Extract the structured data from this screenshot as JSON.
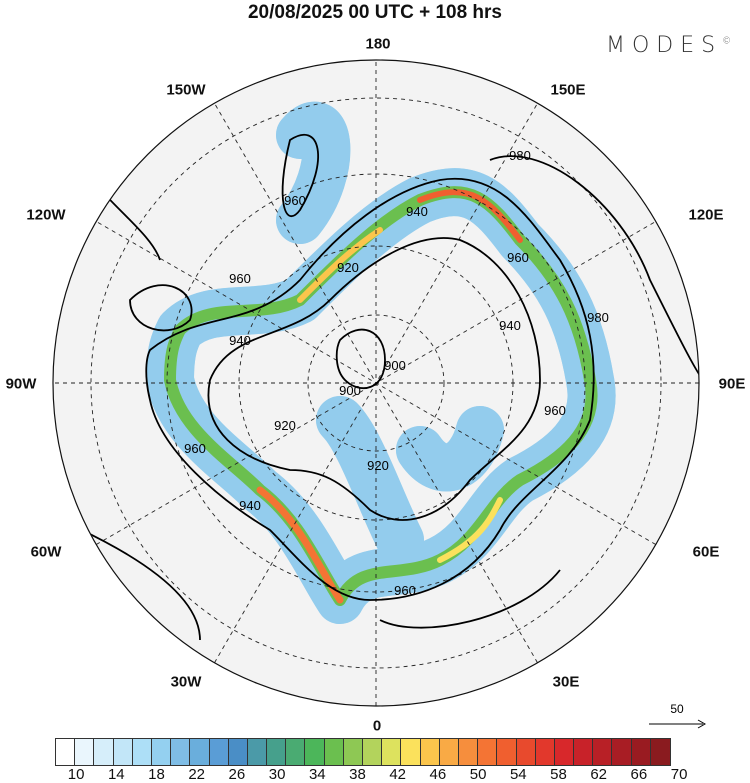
{
  "title": "20/08/2025  00 UTC  + 108 hrs",
  "logo": "MODES",
  "meridian_labels": [
    "180",
    "150E",
    "120E",
    "90E",
    "60E",
    "30E",
    "0",
    "30W",
    "60W",
    "90W",
    "120W",
    "150W"
  ],
  "contour_labels": [
    "980",
    "960",
    "940",
    "920",
    "900",
    "960",
    "940",
    "920",
    "960",
    "940",
    "920",
    "960",
    "980",
    "960",
    "960",
    "940",
    "900"
  ],
  "vector_reference": "50",
  "colorbar": {
    "ticks": [
      "10",
      "14",
      "18",
      "22",
      "26",
      "30",
      "34",
      "38",
      "42",
      "46",
      "50",
      "54",
      "58",
      "62",
      "66",
      "70"
    ],
    "colors": [
      "#ffffff",
      "#eaf6fd",
      "#d6eefa",
      "#c2e6f8",
      "#addff7",
      "#94d0f0",
      "#7fbde6",
      "#6aaedc",
      "#5a9dd6",
      "#4a8ec6",
      "#4b9aa8",
      "#46a08c",
      "#4aab72",
      "#4cb65a",
      "#6bbf4f",
      "#8ec854",
      "#b3d35c",
      "#dde25e",
      "#fbe15c",
      "#fbc54c",
      "#f9aa45",
      "#f68e3d",
      "#f47434",
      "#f05f2f",
      "#e84a2d",
      "#e2382c",
      "#d8282b",
      "#c82229",
      "#b82026",
      "#a81d24",
      "#991b21",
      "#8a1b1f"
    ]
  }
}
